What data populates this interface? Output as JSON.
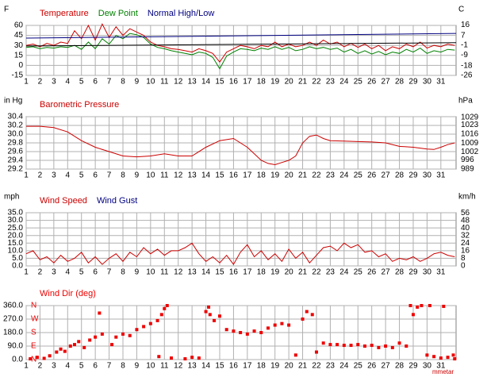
{
  "chart_data": [
    {
      "type": "line",
      "ylabel": "F",
      "y2label": "C",
      "xlim": [
        1,
        32.1
      ],
      "xticks": [
        1,
        2,
        3,
        4,
        5,
        6,
        7,
        8,
        9,
        10,
        11,
        12,
        13,
        14,
        15,
        16,
        17,
        18,
        19,
        20,
        21,
        22,
        23,
        24,
        25,
        26,
        27,
        28,
        29,
        30,
        31
      ],
      "ylim": [
        -15,
        60
      ],
      "yticks": [
        60,
        45,
        30,
        15,
        0,
        -15
      ],
      "y2lim": [
        -26.1,
        15.6
      ],
      "y2ticks": [
        16,
        7,
        -1,
        -9,
        -18,
        -26
      ],
      "grid": true,
      "series": [
        {
          "name": "Temperature",
          "color": "#cc0000",
          "x": [
            1,
            1.5,
            2,
            2.5,
            3,
            3.5,
            4,
            4.5,
            5,
            5.5,
            6,
            6.5,
            7,
            7.5,
            8,
            8.5,
            9,
            9.5,
            10,
            10.5,
            11,
            11.5,
            12,
            12.5,
            13,
            13.5,
            14,
            14.5,
            15,
            15.5,
            16,
            16.5,
            17,
            17.5,
            18,
            18.5,
            19,
            19.5,
            20,
            20.5,
            21,
            21.5,
            22,
            22.5,
            23,
            23.5,
            24,
            24.5,
            25,
            25.5,
            26,
            26.5,
            27,
            27.5,
            28,
            28.5,
            29,
            29.5,
            30,
            30.5,
            31,
            31.5,
            32
          ],
          "values": [
            30,
            32,
            28,
            33,
            30,
            35,
            33,
            52,
            40,
            60,
            38,
            62,
            42,
            58,
            45,
            55,
            50,
            45,
            35,
            30,
            28,
            25,
            24,
            22,
            20,
            25,
            22,
            18,
            5,
            20,
            25,
            30,
            28,
            25,
            30,
            28,
            35,
            28,
            32,
            28,
            30,
            35,
            30,
            38,
            32,
            35,
            28,
            33,
            27,
            32,
            25,
            30,
            22,
            28,
            25,
            32,
            28,
            35,
            26,
            30,
            28,
            32,
            30
          ]
        },
        {
          "name": "Dew Point",
          "color": "#008000",
          "x": [
            1,
            1.5,
            2,
            2.5,
            3,
            3.5,
            4,
            4.5,
            5,
            5.5,
            6,
            6.5,
            7,
            7.5,
            8,
            8.5,
            9,
            9.5,
            10,
            10.5,
            11,
            11.5,
            12,
            12.5,
            13,
            13.5,
            14,
            14.5,
            15,
            15.5,
            16,
            16.5,
            17,
            17.5,
            18,
            18.5,
            19,
            19.5,
            20,
            20.5,
            21,
            21.5,
            22,
            22.5,
            23,
            23.5,
            24,
            24.5,
            25,
            25.5,
            26,
            26.5,
            27,
            27.5,
            28,
            28.5,
            29,
            29.5,
            30,
            30.5,
            31,
            31.5,
            32
          ],
          "values": [
            27,
            28,
            25,
            27,
            26,
            28,
            27,
            30,
            24,
            35,
            25,
            40,
            32,
            45,
            40,
            48,
            46,
            42,
            32,
            27,
            25,
            22,
            20,
            18,
            16,
            20,
            18,
            12,
            -5,
            14,
            20,
            25,
            24,
            22,
            26,
            24,
            28,
            24,
            27,
            22,
            24,
            28,
            25,
            27,
            24,
            26,
            20,
            24,
            18,
            22,
            17,
            21,
            16,
            20,
            18,
            24,
            20,
            26,
            18,
            22,
            20,
            24,
            23
          ]
        },
        {
          "name": "Normal High/Low",
          "color": "#000080",
          "low_color": "#000000",
          "x": [
            1,
            32.1
          ],
          "values": [
            41,
            48
          ],
          "low": [
            29,
            34
          ]
        }
      ]
    },
    {
      "type": "line",
      "ylabel": "in Hg",
      "y2label": "hPa",
      "xlim": [
        1,
        32.1
      ],
      "xticks": [
        1,
        2,
        3,
        4,
        5,
        6,
        7,
        8,
        9,
        10,
        11,
        12,
        13,
        14,
        15,
        16,
        17,
        18,
        19,
        20,
        21,
        22,
        23,
        24,
        25,
        26,
        27,
        28,
        29,
        30,
        31
      ],
      "ylim": [
        29.2,
        30.4
      ],
      "yticks": [
        {
          "value": 30.4,
          "label": "30.4"
        },
        {
          "value": 30.2,
          "label": "30.2"
        },
        {
          "value": 30.0,
          "label": "30.0"
        },
        {
          "value": 29.8,
          "label": "29.8"
        },
        {
          "value": 29.6,
          "label": "29.6"
        },
        {
          "value": 29.4,
          "label": "29.4"
        },
        {
          "value": 29.2,
          "label": "29.2"
        }
      ],
      "y2lim": [
        988.8,
        1029.5
      ],
      "y2ticks": [
        1029,
        1023,
        1016,
        1009,
        1002,
        996,
        989
      ],
      "grid": true,
      "series": [
        {
          "name": "Barometric Pressure",
          "color": "#cc0000",
          "x": [
            1,
            2,
            3,
            4,
            5,
            6,
            7,
            8,
            9,
            10,
            11,
            12,
            13,
            14,
            15,
            16,
            17,
            17.5,
            18,
            18.5,
            19,
            19.5,
            20,
            20.5,
            21,
            21.5,
            22,
            22.5,
            23,
            24,
            25,
            26,
            27,
            28,
            29,
            30,
            30.5,
            31,
            31.5,
            32
          ],
          "values": [
            30.18,
            30.18,
            30.15,
            30.05,
            29.85,
            29.7,
            29.6,
            29.5,
            29.48,
            29.5,
            29.55,
            29.5,
            29.5,
            29.7,
            29.85,
            29.9,
            29.7,
            29.55,
            29.4,
            29.33,
            29.3,
            29.35,
            29.4,
            29.5,
            29.8,
            29.95,
            29.98,
            29.9,
            29.85,
            29.84,
            29.83,
            29.82,
            29.8,
            29.72,
            29.7,
            29.66,
            29.65,
            29.7,
            29.76,
            29.8
          ]
        }
      ]
    },
    {
      "type": "line",
      "ylabel": "mph",
      "y2label": "km/h",
      "xlim": [
        1,
        32.1
      ],
      "xticks": [
        1,
        2,
        3,
        4,
        5,
        6,
        7,
        8,
        9,
        10,
        11,
        12,
        13,
        14,
        15,
        16,
        17,
        18,
        19,
        20,
        21,
        22,
        23,
        24,
        25,
        26,
        27,
        28,
        29,
        30,
        31
      ],
      "ylim": [
        0,
        35
      ],
      "yticks": [
        {
          "value": 35,
          "label": "35.0"
        },
        {
          "value": 30,
          "label": "30.0"
        },
        {
          "value": 25,
          "label": "25.0"
        },
        {
          "value": 20,
          "label": "20.0"
        },
        {
          "value": 15,
          "label": "15.0"
        },
        {
          "value": 10,
          "label": "10.0"
        },
        {
          "value": 5,
          "label": "5.0"
        },
        {
          "value": 0,
          "label": "0.0"
        }
      ],
      "y2lim": [
        0,
        56.3
      ],
      "y2ticks": [
        56,
        48,
        40,
        32,
        24,
        16,
        8,
        0
      ],
      "grid": true,
      "series": [
        {
          "name": "Wind Speed",
          "color": "#cc0000",
          "x": [
            1,
            1.5,
            2,
            2.5,
            3,
            3.5,
            4,
            4.5,
            5,
            5.5,
            6,
            6.5,
            7,
            7.5,
            8,
            8.5,
            9,
            9.5,
            10,
            10.5,
            11,
            11.5,
            12,
            12.5,
            13,
            13.5,
            14,
            14.5,
            15,
            15.5,
            16,
            16.5,
            17,
            17.5,
            18,
            18.5,
            19,
            19.5,
            20,
            20.5,
            21,
            21.5,
            22,
            22.5,
            23,
            23.5,
            24,
            24.5,
            25,
            25.5,
            26,
            26.5,
            27,
            27.5,
            28,
            28.5,
            29,
            29.5,
            30,
            30.5,
            31,
            31.5,
            32
          ],
          "values": [
            8,
            10,
            4,
            6,
            2,
            7,
            3,
            5,
            9,
            2,
            6,
            1,
            5,
            8,
            3,
            9,
            6,
            12,
            8,
            11,
            7,
            10,
            10,
            12,
            15,
            8,
            3,
            6,
            2,
            7,
            1,
            9,
            14,
            6,
            10,
            4,
            8,
            3,
            11,
            5,
            9,
            2,
            7,
            12,
            13,
            10,
            15,
            12,
            14,
            9,
            10,
            6,
            8,
            3,
            5,
            4,
            6,
            3,
            5,
            8,
            9,
            7,
            6
          ]
        },
        {
          "name": "Wind Gust",
          "color": "#000080",
          "x": [],
          "values": []
        }
      ]
    },
    {
      "type": "scatter",
      "ylabel": null,
      "footer": "mmetar",
      "xlim": [
        1,
        32.1
      ],
      "xticks": [
        1,
        2,
        3,
        4,
        5,
        6,
        7,
        8,
        9,
        10,
        11,
        12,
        13,
        14,
        15,
        16,
        17,
        18,
        19,
        20,
        21,
        22,
        23,
        24,
        25,
        26,
        27,
        28,
        29,
        30,
        31
      ],
      "ylim": [
        0,
        360
      ],
      "yticks": [
        {
          "value": 360,
          "label": "360.0"
        },
        {
          "value": 270,
          "label": "270.0"
        },
        {
          "value": 180,
          "label": "180.0"
        },
        {
          "value": 90,
          "label": "90.0"
        },
        {
          "value": 0,
          "label": "0.0"
        }
      ],
      "compass": [
        {
          "value": 360,
          "label": "N"
        },
        {
          "value": 270,
          "label": "W"
        },
        {
          "value": 180,
          "label": "S"
        },
        {
          "value": 90,
          "label": "E"
        },
        {
          "value": 0,
          "label": "N"
        }
      ],
      "grid": true,
      "series": [
        {
          "name": "Wind Dir (deg)",
          "color": "#ee0000",
          "x": [
            1.3,
            1.8,
            2.3,
            2.7,
            3.2,
            3.5,
            3.8,
            4.2,
            4.5,
            4.8,
            5.2,
            5.6,
            6,
            6.3,
            6.5,
            7.2,
            7.5,
            8,
            8.5,
            9,
            9.5,
            10,
            10.5,
            10.6,
            10.8,
            11,
            11.2,
            11.5,
            12.5,
            13,
            13.5,
            14,
            14.2,
            14.3,
            14.6,
            15,
            15.5,
            16,
            16.5,
            17,
            17.5,
            18,
            18.5,
            19,
            19.5,
            20,
            20.5,
            21,
            21.3,
            21.7,
            22,
            22.5,
            23,
            23.5,
            24,
            24.5,
            25,
            25.5,
            26,
            26.5,
            27,
            27.5,
            28,
            28.5,
            28.8,
            29,
            29.3,
            29.6,
            30,
            30.2,
            30.5,
            31,
            31.2,
            31.5,
            31.9,
            32
          ],
          "values": [
            5,
            15,
            8,
            25,
            50,
            70,
            55,
            90,
            100,
            120,
            80,
            130,
            150,
            310,
            170,
            100,
            150,
            170,
            160,
            200,
            220,
            240,
            260,
            20,
            300,
            340,
            360,
            10,
            5,
            15,
            10,
            320,
            350,
            300,
            260,
            290,
            200,
            190,
            180,
            170,
            190,
            180,
            210,
            230,
            240,
            230,
            30,
            270,
            320,
            300,
            50,
            110,
            100,
            100,
            95,
            95,
            100,
            90,
            95,
            80,
            90,
            80,
            110,
            90,
            360,
            300,
            350,
            360,
            30,
            360,
            20,
            10,
            355,
            15,
            30,
            5
          ]
        }
      ]
    }
  ]
}
